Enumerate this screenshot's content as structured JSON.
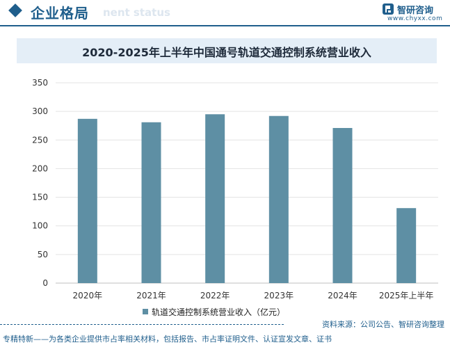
{
  "header": {
    "section_title": "企业格局",
    "watermark_text": "nent status",
    "logo_name": "智研咨询",
    "logo_url": "www.chyxx.com",
    "accent_color": "#1f5e8c"
  },
  "chart_data": {
    "type": "bar",
    "title": "2020-2025年上半年中国通号轨道交通控制系统营业收入",
    "categories": [
      "2020年",
      "2021年",
      "2022年",
      "2023年",
      "2024年",
      "2025年上半年"
    ],
    "series": [
      {
        "name": "轨道交通控制系统营业收入（亿元）",
        "values": [
          287,
          281,
          295,
          292,
          271,
          131
        ],
        "color": "#5e8fa4"
      }
    ],
    "yticks": [
      "0",
      "50",
      "100",
      "150",
      "200",
      "250",
      "300",
      "350"
    ],
    "ylim": [
      0,
      350
    ],
    "grid": true,
    "legend_position": "bottom",
    "xlabel": "",
    "ylabel": ""
  },
  "source": "资料来源：公司公告、智研咨询整理",
  "footer": "专精特新——为各类企业提供市占率相关材料，包括报告、市占率证明文件、认证宣发文章、证书"
}
